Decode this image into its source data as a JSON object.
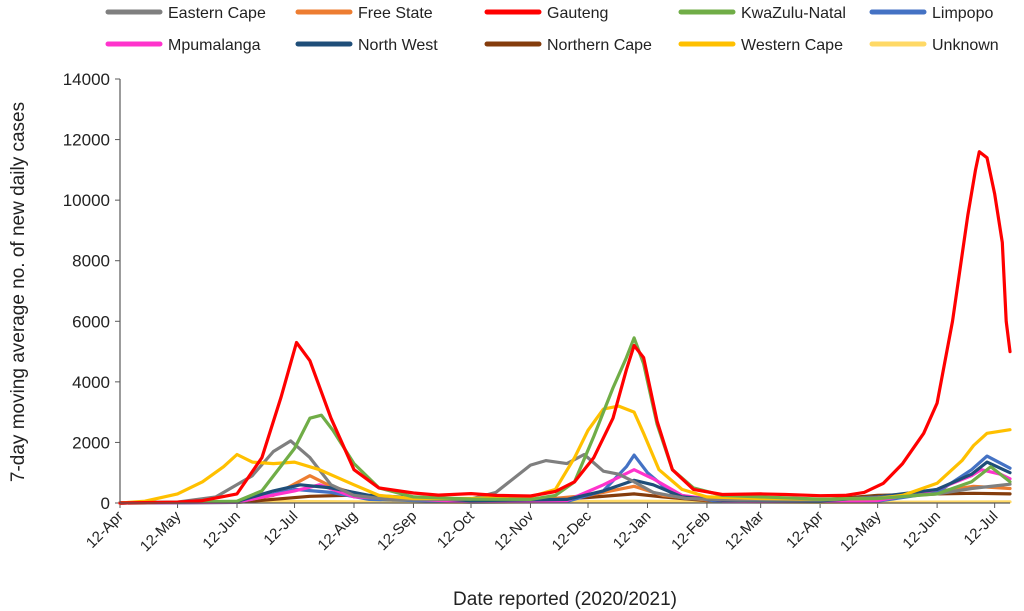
{
  "chart_data": {
    "type": "line",
    "xlabel": "Date reported (2020/2021)",
    "ylabel": "7-day moving average no. of new daily cases",
    "ylim": [
      0,
      14000
    ],
    "y_ticks": [
      "0",
      "2000",
      "4000",
      "6000",
      "8000",
      "10000",
      "12000",
      "14000"
    ],
    "x_tick_labels": [
      "12-Apr",
      "12-May",
      "12-Jun",
      "12-Jul",
      "12-Aug",
      "12-Sep",
      "12-Oct",
      "12-Nov",
      "12-Dec",
      "12-Jan",
      "12-Feb",
      "12-Mar",
      "12-Apr",
      "12-May",
      "12-Jun",
      "12-Jul"
    ],
    "grid": false,
    "legend_position": "top",
    "series": [
      {
        "name": "Eastern Cape",
        "color": "#7f7f7f",
        "points": [
          [
            "2020-04-12",
            0
          ],
          [
            "2020-05-12",
            30
          ],
          [
            "2020-06-01",
            200
          ],
          [
            "2020-06-20",
            900
          ],
          [
            "2020-07-01",
            1700
          ],
          [
            "2020-07-10",
            2050
          ],
          [
            "2020-07-20",
            1500
          ],
          [
            "2020-07-31",
            600
          ],
          [
            "2020-08-12",
            250
          ],
          [
            "2020-09-01",
            100
          ],
          [
            "2020-10-12",
            130
          ],
          [
            "2020-10-25",
            350
          ],
          [
            "2020-11-12",
            1250
          ],
          [
            "2020-11-20",
            1400
          ],
          [
            "2020-12-01",
            1300
          ],
          [
            "2020-12-10",
            1600
          ],
          [
            "2020-12-20",
            1050
          ],
          [
            "2020-12-28",
            950
          ],
          [
            "2021-01-05",
            700
          ],
          [
            "2021-01-15",
            350
          ],
          [
            "2021-02-01",
            150
          ],
          [
            "2021-03-01",
            100
          ],
          [
            "2021-04-12",
            100
          ],
          [
            "2021-05-12",
            180
          ],
          [
            "2021-06-12",
            300
          ],
          [
            "2021-06-30",
            480
          ],
          [
            "2021-07-20",
            620
          ]
        ]
      },
      {
        "name": "Free State",
        "color": "#ed7d31",
        "points": [
          [
            "2020-04-12",
            0
          ],
          [
            "2020-06-12",
            40
          ],
          [
            "2020-07-01",
            250
          ],
          [
            "2020-07-20",
            900
          ],
          [
            "2020-07-31",
            550
          ],
          [
            "2020-08-20",
            180
          ],
          [
            "2020-10-01",
            60
          ],
          [
            "2020-11-12",
            80
          ],
          [
            "2020-12-12",
            250
          ],
          [
            "2021-01-05",
            550
          ],
          [
            "2021-01-20",
            250
          ],
          [
            "2021-02-12",
            100
          ],
          [
            "2021-04-12",
            80
          ],
          [
            "2021-05-12",
            200
          ],
          [
            "2021-06-12",
            380
          ],
          [
            "2021-07-01",
            550
          ],
          [
            "2021-07-20",
            480
          ]
        ]
      },
      {
        "name": "Gauteng",
        "color": "#ff0000",
        "points": [
          [
            "2020-04-12",
            0
          ],
          [
            "2020-05-12",
            30
          ],
          [
            "2020-05-25",
            80
          ],
          [
            "2020-06-12",
            300
          ],
          [
            "2020-06-25",
            1500
          ],
          [
            "2020-07-05",
            3500
          ],
          [
            "2020-07-13",
            5300
          ],
          [
            "2020-07-20",
            4700
          ],
          [
            "2020-07-31",
            2800
          ],
          [
            "2020-08-12",
            1100
          ],
          [
            "2020-08-25",
            500
          ],
          [
            "2020-09-12",
            330
          ],
          [
            "2020-09-25",
            260
          ],
          [
            "2020-10-12",
            310
          ],
          [
            "2020-10-25",
            250
          ],
          [
            "2020-11-12",
            230
          ],
          [
            "2020-11-25",
            380
          ],
          [
            "2020-12-05",
            700
          ],
          [
            "2020-12-15",
            1500
          ],
          [
            "2020-12-25",
            2800
          ],
          [
            "2021-01-01",
            4400
          ],
          [
            "2021-01-05",
            5200
          ],
          [
            "2021-01-10",
            4800
          ],
          [
            "2021-01-17",
            2700
          ],
          [
            "2021-01-25",
            1100
          ],
          [
            "2021-02-05",
            450
          ],
          [
            "2021-02-20",
            280
          ],
          [
            "2021-03-12",
            300
          ],
          [
            "2021-03-25",
            280
          ],
          [
            "2021-04-12",
            240
          ],
          [
            "2021-04-25",
            250
          ],
          [
            "2021-05-05",
            350
          ],
          [
            "2021-05-15",
            650
          ],
          [
            "2021-05-25",
            1300
          ],
          [
            "2021-06-05",
            2300
          ],
          [
            "2021-06-12",
            3300
          ],
          [
            "2021-06-20",
            6000
          ],
          [
            "2021-06-28",
            9500
          ],
          [
            "2021-07-02",
            11000
          ],
          [
            "2021-07-04",
            11600
          ],
          [
            "2021-07-08",
            11400
          ],
          [
            "2021-07-12",
            10200
          ],
          [
            "2021-07-16",
            8600
          ],
          [
            "2021-07-18",
            6000
          ],
          [
            "2021-07-20",
            5000
          ]
        ]
      },
      {
        "name": "KwaZulu-Natal",
        "color": "#70ad47",
        "points": [
          [
            "2020-04-12",
            0
          ],
          [
            "2020-06-12",
            60
          ],
          [
            "2020-06-25",
            400
          ],
          [
            "2020-07-12",
            1800
          ],
          [
            "2020-07-20",
            2800
          ],
          [
            "2020-07-26",
            2900
          ],
          [
            "2020-08-01",
            2400
          ],
          [
            "2020-08-12",
            1300
          ],
          [
            "2020-08-25",
            500
          ],
          [
            "2020-09-12",
            200
          ],
          [
            "2020-10-12",
            130
          ],
          [
            "2020-11-12",
            120
          ],
          [
            "2020-11-25",
            250
          ],
          [
            "2020-12-05",
            700
          ],
          [
            "2020-12-15",
            2200
          ],
          [
            "2020-12-25",
            3800
          ],
          [
            "2021-01-01",
            4800
          ],
          [
            "2021-01-05",
            5450
          ],
          [
            "2021-01-10",
            4600
          ],
          [
            "2021-01-17",
            2600
          ],
          [
            "2021-01-25",
            1100
          ],
          [
            "2021-02-05",
            500
          ],
          [
            "2021-02-20",
            250
          ],
          [
            "2021-03-12",
            200
          ],
          [
            "2021-04-12",
            130
          ],
          [
            "2021-05-12",
            150
          ],
          [
            "2021-06-12",
            300
          ],
          [
            "2021-06-30",
            700
          ],
          [
            "2021-07-10",
            1200
          ],
          [
            "2021-07-20",
            700
          ]
        ]
      },
      {
        "name": "Limpopo",
        "color": "#4472c4",
        "points": [
          [
            "2020-04-12",
            0
          ],
          [
            "2020-06-12",
            20
          ],
          [
            "2020-07-12",
            450
          ],
          [
            "2020-07-31",
            350
          ],
          [
            "2020-08-20",
            120
          ],
          [
            "2020-10-12",
            30
          ],
          [
            "2020-12-01",
            50
          ],
          [
            "2020-12-20",
            400
          ],
          [
            "2021-01-01",
            1200
          ],
          [
            "2021-01-05",
            1580
          ],
          [
            "2021-01-12",
            1000
          ],
          [
            "2021-01-25",
            300
          ],
          [
            "2021-02-15",
            80
          ],
          [
            "2021-04-12",
            40
          ],
          [
            "2021-05-12",
            60
          ],
          [
            "2021-06-12",
            350
          ],
          [
            "2021-06-30",
            1100
          ],
          [
            "2021-07-08",
            1550
          ],
          [
            "2021-07-20",
            1150
          ]
        ]
      },
      {
        "name": "Mpumalanga",
        "color": "#ff33cc",
        "points": [
          [
            "2020-04-12",
            0
          ],
          [
            "2020-06-12",
            30
          ],
          [
            "2020-07-12",
            400
          ],
          [
            "2020-07-25",
            600
          ],
          [
            "2020-08-12",
            200
          ],
          [
            "2020-10-12",
            40
          ],
          [
            "2020-12-01",
            80
          ],
          [
            "2020-12-20",
            600
          ],
          [
            "2021-01-05",
            1100
          ],
          [
            "2021-01-15",
            800
          ],
          [
            "2021-01-30",
            250
          ],
          [
            "2021-02-20",
            80
          ],
          [
            "2021-04-12",
            50
          ],
          [
            "2021-05-12",
            80
          ],
          [
            "2021-06-12",
            450
          ],
          [
            "2021-06-30",
            900
          ],
          [
            "2021-07-05",
            1100
          ],
          [
            "2021-07-15",
            950
          ],
          [
            "2021-07-20",
            800
          ]
        ]
      },
      {
        "name": "North West",
        "color": "#1f4e79",
        "points": [
          [
            "2020-04-12",
            0
          ],
          [
            "2020-06-12",
            50
          ],
          [
            "2020-07-01",
            400
          ],
          [
            "2020-07-15",
            600
          ],
          [
            "2020-07-31",
            500
          ],
          [
            "2020-08-20",
            250
          ],
          [
            "2020-10-12",
            80
          ],
          [
            "2020-12-01",
            120
          ],
          [
            "2020-12-20",
            400
          ],
          [
            "2021-01-05",
            750
          ],
          [
            "2021-01-15",
            600
          ],
          [
            "2021-01-30",
            200
          ],
          [
            "2021-02-20",
            90
          ],
          [
            "2021-04-12",
            70
          ],
          [
            "2021-05-12",
            200
          ],
          [
            "2021-06-12",
            450
          ],
          [
            "2021-06-30",
            950
          ],
          [
            "2021-07-08",
            1350
          ],
          [
            "2021-07-20",
            1000
          ]
        ]
      },
      {
        "name": "Northern Cape",
        "color": "#843c0c",
        "points": [
          [
            "2020-04-12",
            0
          ],
          [
            "2020-06-12",
            20
          ],
          [
            "2020-07-20",
            220
          ],
          [
            "2020-08-12",
            260
          ],
          [
            "2020-09-01",
            120
          ],
          [
            "2020-10-12",
            60
          ],
          [
            "2020-11-12",
            80
          ],
          [
            "2020-12-12",
            180
          ],
          [
            "2021-01-05",
            300
          ],
          [
            "2021-01-20",
            200
          ],
          [
            "2021-02-12",
            80
          ],
          [
            "2021-03-12",
            70
          ],
          [
            "2021-04-12",
            100
          ],
          [
            "2021-05-12",
            250
          ],
          [
            "2021-06-12",
            300
          ],
          [
            "2021-07-01",
            320
          ],
          [
            "2021-07-20",
            300
          ]
        ]
      },
      {
        "name": "Western Cape",
        "color": "#ffc000",
        "points": [
          [
            "2020-04-12",
            0
          ],
          [
            "2020-04-25",
            60
          ],
          [
            "2020-05-12",
            300
          ],
          [
            "2020-05-25",
            700
          ],
          [
            "2020-06-05",
            1200
          ],
          [
            "2020-06-12",
            1600
          ],
          [
            "2020-06-20",
            1350
          ],
          [
            "2020-07-01",
            1300
          ],
          [
            "2020-07-12",
            1350
          ],
          [
            "2020-07-25",
            1100
          ],
          [
            "2020-08-12",
            600
          ],
          [
            "2020-08-25",
            250
          ],
          [
            "2020-09-12",
            150
          ],
          [
            "2020-10-12",
            150
          ],
          [
            "2020-11-12",
            200
          ],
          [
            "2020-11-25",
            450
          ],
          [
            "2020-12-05",
            1500
          ],
          [
            "2020-12-12",
            2400
          ],
          [
            "2020-12-20",
            3100
          ],
          [
            "2020-12-28",
            3200
          ],
          [
            "2021-01-05",
            3000
          ],
          [
            "2021-01-10",
            2300
          ],
          [
            "2021-01-18",
            1100
          ],
          [
            "2021-01-30",
            450
          ],
          [
            "2021-02-12",
            200
          ],
          [
            "2021-03-12",
            150
          ],
          [
            "2021-04-12",
            130
          ],
          [
            "2021-05-12",
            150
          ],
          [
            "2021-05-25",
            250
          ],
          [
            "2021-06-12",
            650
          ],
          [
            "2021-06-25",
            1400
          ],
          [
            "2021-07-01",
            1900
          ],
          [
            "2021-07-08",
            2300
          ],
          [
            "2021-07-20",
            2420
          ]
        ]
      },
      {
        "name": "Unknown",
        "color": "#ffd966",
        "points": [
          [
            "2020-04-12",
            0
          ],
          [
            "2020-07-12",
            50
          ],
          [
            "2020-10-12",
            20
          ],
          [
            "2021-01-05",
            60
          ],
          [
            "2021-04-12",
            20
          ],
          [
            "2021-07-20",
            40
          ]
        ]
      }
    ]
  }
}
